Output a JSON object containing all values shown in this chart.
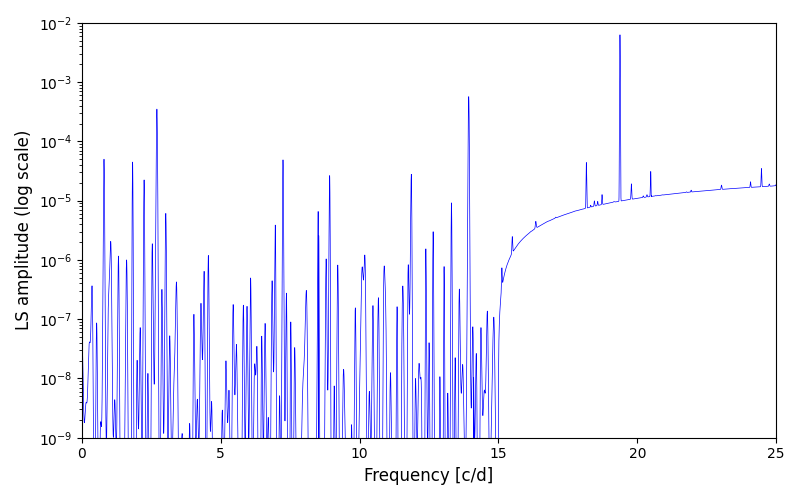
{
  "title": "",
  "xlabel": "Frequency [c/d]",
  "ylabel": "LS amplitude (log scale)",
  "xlim": [
    0,
    25
  ],
  "ylim": [
    1e-09,
    0.01
  ],
  "line_color": "#0000ff",
  "line_width": 0.5,
  "freq_max": 25.0,
  "n_points": 15000,
  "seed": 7,
  "background_color": "#ffffff",
  "figsize": [
    8.0,
    5.0
  ],
  "dpi": 100
}
